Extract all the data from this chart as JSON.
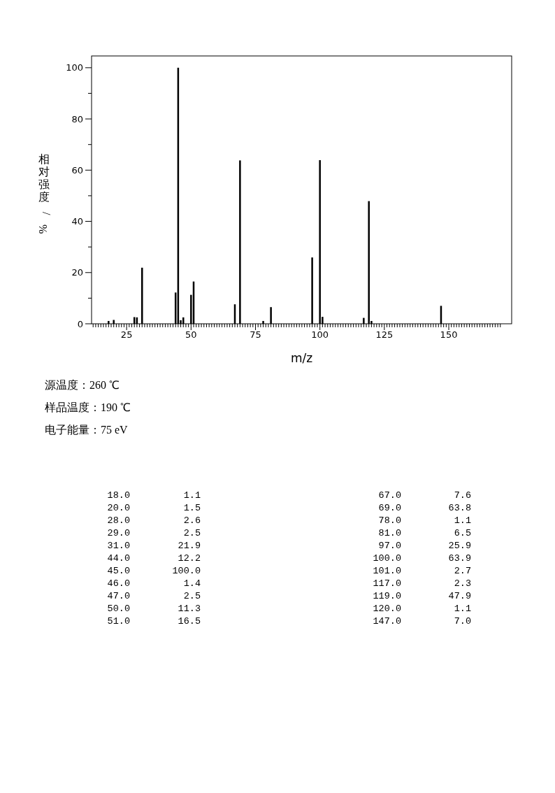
{
  "chart_data": {
    "type": "bar",
    "xlabel": "m/z",
    "ylabel": "相对强度/%",
    "x": [
      18,
      20,
      28,
      29,
      31,
      44,
      45,
      46,
      47,
      50,
      51,
      67,
      69,
      78,
      81,
      97,
      100,
      101,
      117,
      119,
      120,
      147
    ],
    "values": [
      1.1,
      1.5,
      2.6,
      2.5,
      21.9,
      12.2,
      100.0,
      1.4,
      2.5,
      11.3,
      16.5,
      7.6,
      63.8,
      1.1,
      6.5,
      25.9,
      63.9,
      2.7,
      2.3,
      47.9,
      1.1,
      7.0
    ],
    "color": "#000000",
    "xlim": [
      11.4,
      174.4
    ],
    "ylim": [
      0,
      104.6
    ],
    "xticks": [
      {
        "value": 12,
        "label": null
      },
      {
        "value": 13,
        "label": null
      },
      {
        "value": 14,
        "label": null
      },
      {
        "value": 15,
        "label": null
      },
      {
        "value": 16,
        "label": null
      },
      {
        "value": 17,
        "label": null
      },
      {
        "value": 18,
        "label": null
      },
      {
        "value": 19,
        "label": null
      },
      {
        "value": 20,
        "label": null
      },
      {
        "value": 21,
        "label": null
      },
      {
        "value": 22,
        "label": null
      },
      {
        "value": 23,
        "label": null
      },
      {
        "value": 24,
        "label": null
      },
      25,
      {
        "value": 26,
        "label": null
      },
      {
        "value": 27,
        "label": null
      },
      {
        "value": 28,
        "label": null
      },
      {
        "value": 29,
        "label": null
      },
      {
        "value": 30,
        "label": null
      },
      {
        "value": 31,
        "label": null
      },
      {
        "value": 32,
        "label": null
      },
      {
        "value": 33,
        "label": null
      },
      {
        "value": 34,
        "label": null
      },
      {
        "value": 35,
        "label": null
      },
      {
        "value": 36,
        "label": null
      },
      {
        "value": 37,
        "label": null
      },
      {
        "value": 38,
        "label": null
      },
      {
        "value": 39,
        "label": null
      },
      {
        "value": 40,
        "label": null
      },
      {
        "value": 41,
        "label": null
      },
      {
        "value": 42,
        "label": null
      },
      {
        "value": 43,
        "label": null
      },
      {
        "value": 44,
        "label": null
      },
      {
        "value": 45,
        "label": null
      },
      {
        "value": 46,
        "label": null
      },
      {
        "value": 47,
        "label": null
      },
      {
        "value": 48,
        "label": null
      },
      {
        "value": 49,
        "label": null
      },
      50,
      {
        "value": 51,
        "label": null
      },
      {
        "value": 52,
        "label": null
      },
      {
        "value": 53,
        "label": null
      },
      {
        "value": 54,
        "label": null
      },
      {
        "value": 55,
        "label": null
      },
      {
        "value": 56,
        "label": null
      },
      {
        "value": 57,
        "label": null
      },
      {
        "value": 58,
        "label": null
      },
      {
        "value": 59,
        "label": null
      },
      {
        "value": 60,
        "label": null
      },
      {
        "value": 61,
        "label": null
      },
      {
        "value": 62,
        "label": null
      },
      {
        "value": 63,
        "label": null
      },
      {
        "value": 64,
        "label": null
      },
      {
        "value": 65,
        "label": null
      },
      {
        "value": 66,
        "label": null
      },
      {
        "value": 67,
        "label": null
      },
      {
        "value": 68,
        "label": null
      },
      {
        "value": 69,
        "label": null
      },
      {
        "value": 70,
        "label": null
      },
      {
        "value": 71,
        "label": null
      },
      {
        "value": 72,
        "label": null
      },
      {
        "value": 73,
        "label": null
      },
      {
        "value": 74,
        "label": null
      },
      75,
      {
        "value": 76,
        "label": null
      },
      {
        "value": 77,
        "label": null
      },
      {
        "value": 78,
        "label": null
      },
      {
        "value": 79,
        "label": null
      },
      {
        "value": 80,
        "label": null
      },
      {
        "value": 81,
        "label": null
      },
      {
        "value": 82,
        "label": null
      },
      {
        "value": 83,
        "label": null
      },
      {
        "value": 84,
        "label": null
      },
      {
        "value": 85,
        "label": null
      },
      {
        "value": 86,
        "label": null
      },
      {
        "value": 87,
        "label": null
      },
      {
        "value": 88,
        "label": null
      },
      {
        "value": 89,
        "label": null
      },
      {
        "value": 90,
        "label": null
      },
      {
        "value": 91,
        "label": null
      },
      {
        "value": 92,
        "label": null
      },
      {
        "value": 93,
        "label": null
      },
      {
        "value": 94,
        "label": null
      },
      {
        "value": 95,
        "label": null
      },
      {
        "value": 96,
        "label": null
      },
      {
        "value": 97,
        "label": null
      },
      {
        "value": 98,
        "label": null
      },
      {
        "value": 99,
        "label": null
      },
      100,
      {
        "value": 101,
        "label": null
      },
      {
        "value": 102,
        "label": null
      },
      {
        "value": 103,
        "label": null
      },
      {
        "value": 104,
        "label": null
      },
      {
        "value": 105,
        "label": null
      },
      {
        "value": 106,
        "label": null
      },
      {
        "value": 107,
        "label": null
      },
      {
        "value": 108,
        "label": null
      },
      {
        "value": 109,
        "label": null
      },
      {
        "value": 110,
        "label": null
      },
      {
        "value": 111,
        "label": null
      },
      {
        "value": 112,
        "label": null
      },
      {
        "value": 113,
        "label": null
      },
      {
        "value": 114,
        "label": null
      },
      {
        "value": 115,
        "label": null
      },
      {
        "value": 116,
        "label": null
      },
      {
        "value": 117,
        "label": null
      },
      {
        "value": 118,
        "label": null
      },
      {
        "value": 119,
        "label": null
      },
      {
        "value": 120,
        "label": null
      },
      {
        "value": 121,
        "label": null
      },
      {
        "value": 122,
        "label": null
      },
      {
        "value": 123,
        "label": null
      },
      {
        "value": 124,
        "label": null
      },
      125,
      {
        "value": 126,
        "label": null
      },
      {
        "value": 127,
        "label": null
      },
      {
        "value": 128,
        "label": null
      },
      {
        "value": 129,
        "label": null
      },
      {
        "value": 130,
        "label": null
      },
      {
        "value": 131,
        "label": null
      },
      {
        "value": 132,
        "label": null
      },
      {
        "value": 133,
        "label": null
      },
      {
        "value": 134,
        "label": null
      },
      {
        "value": 135,
        "label": null
      },
      {
        "value": 136,
        "label": null
      },
      {
        "value": 137,
        "label": null
      },
      {
        "value": 138,
        "label": null
      },
      {
        "value": 139,
        "label": null
      },
      {
        "value": 140,
        "label": null
      },
      {
        "value": 141,
        "label": null
      },
      {
        "value": 142,
        "label": null
      },
      {
        "value": 143,
        "label": null
      },
      {
        "value": 144,
        "label": null
      },
      {
        "value": 145,
        "label": null
      },
      {
        "value": 146,
        "label": null
      },
      {
        "value": 147,
        "label": null
      },
      {
        "value": 148,
        "label": null
      },
      {
        "value": 149,
        "label": null
      },
      150,
      {
        "value": 151,
        "label": null
      },
      {
        "value": 152,
        "label": null
      },
      {
        "value": 153,
        "label": null
      },
      {
        "value": 154,
        "label": null
      },
      {
        "value": 155,
        "label": null
      },
      {
        "value": 156,
        "label": null
      },
      {
        "value": 157,
        "label": null
      },
      {
        "value": 158,
        "label": null
      },
      {
        "value": 159,
        "label": null
      },
      {
        "value": 160,
        "label": null
      },
      {
        "value": 161,
        "label": null
      },
      {
        "value": 162,
        "label": null
      },
      {
        "value": 163,
        "label": null
      },
      {
        "value": 164,
        "label": null
      },
      {
        "value": 165,
        "label": null
      },
      {
        "value": 166,
        "label": null
      },
      {
        "value": 167,
        "label": null
      },
      {
        "value": 168,
        "label": null
      },
      {
        "value": 169,
        "label": null
      },
      {
        "value": 170,
        "label": null
      }
    ],
    "yticks": [
      0,
      {
        "value": 10,
        "label": null
      },
      20,
      {
        "value": 30,
        "label": null
      },
      40,
      {
        "value": 50,
        "label": null
      },
      60,
      {
        "value": 70,
        "label": null
      },
      80,
      {
        "value": 90,
        "label": null
      },
      100
    ],
    "annotations": [
      "源温度：260 ℃",
      "样品温度：190 ℃",
      "电子能量：75 eV",
      "18.0",
      "1.1",
      "20.0",
      "1.5",
      "28.0",
      "2.6",
      "29.0",
      "2.5",
      "31.0",
      "21.9",
      "44.0",
      "12.2",
      "45.0",
      "100.0",
      "46.0",
      "1.4",
      "47.0",
      "2.5",
      "50.0",
      "11.3",
      "51.0",
      "16.5",
      "67.0",
      "7.6",
      "69.0",
      "63.8",
      "78.0",
      "1.1",
      "81.0",
      "6.5",
      "97.0",
      "25.9",
      "100.0",
      "63.9",
      "101.0",
      "2.7",
      "117.0",
      "2.3",
      "119.0",
      "47.9",
      "120.0",
      "1.1",
      "147.0",
      "7.0"
    ]
  }
}
